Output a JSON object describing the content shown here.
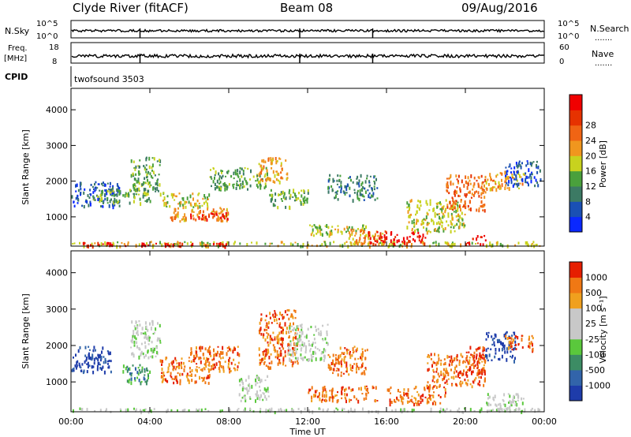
{
  "header": {
    "station": "Clyde River (fitACF)",
    "beam": "Beam 08",
    "date": "09/Aug/2016"
  },
  "top_panels": {
    "nsky_label": "N.Sky",
    "nsearch_label": "N.Search",
    "nsky_ticks": [
      "10^5",
      "10^0"
    ],
    "nsearch_ticks": [
      "10^5",
      "10^0"
    ],
    "freq_label_1": "Freq.",
    "freq_label_2": "[MHz]",
    "freq_ticks": [
      "18",
      "8"
    ],
    "nave_label": "Nave",
    "nave_ticks": [
      "60",
      "0"
    ],
    "cpid_label": "CPID",
    "cpid_value": "twofsound 3503",
    "dots": "......."
  },
  "chart_data": [
    {
      "type": "heatmap",
      "name": "power",
      "ylabel": "Slant Range [km]",
      "ylim": [
        180,
        4600
      ],
      "yticks": [
        1000,
        2000,
        3000,
        4000
      ],
      "xlim": [
        0,
        24
      ],
      "xticks": [
        0,
        4,
        8,
        12,
        16,
        20,
        24
      ],
      "colorbar": {
        "label": "Power [dB]",
        "tick_labels": [
          "4",
          "8",
          "12",
          "16",
          "20",
          "24",
          "28"
        ],
        "colors": [
          "#0a28ff",
          "#1a50b4",
          "#3c7a64",
          "#4aa03c",
          "#c8d21e",
          "#f0961e",
          "#f06414",
          "#e63200",
          "#f00000"
        ]
      },
      "regions": [
        {
          "t0": 0.0,
          "t1": 24.0,
          "r0": 200,
          "r1": 330,
          "level": 4
        },
        {
          "t0": 0.5,
          "t1": 8.0,
          "r0": 200,
          "r1": 300,
          "level": 8
        },
        {
          "t0": 0.0,
          "t1": 2.5,
          "r0": 1300,
          "r1": 2000,
          "level": 1
        },
        {
          "t0": 1.0,
          "t1": 4.0,
          "r0": 1400,
          "r1": 1800,
          "level": 3
        },
        {
          "t0": 3.0,
          "t1": 4.5,
          "r0": 1700,
          "r1": 2700,
          "level": 3
        },
        {
          "t0": 4.5,
          "t1": 7.0,
          "r0": 1300,
          "r1": 1700,
          "level": 4
        },
        {
          "t0": 5.0,
          "t1": 8.0,
          "r0": 900,
          "r1": 1300,
          "level": 5
        },
        {
          "t0": 6.0,
          "t1": 8.0,
          "r0": 950,
          "r1": 1150,
          "level": 8
        },
        {
          "t0": 7.0,
          "t1": 10.0,
          "r0": 1800,
          "r1": 2400,
          "level": 3
        },
        {
          "t0": 9.5,
          "t1": 11.0,
          "r0": 2000,
          "r1": 2700,
          "level": 5
        },
        {
          "t0": 10.0,
          "t1": 12.0,
          "r0": 1300,
          "r1": 1800,
          "level": 3
        },
        {
          "t0": 12.0,
          "t1": 15.0,
          "r0": 500,
          "r1": 800,
          "level": 4
        },
        {
          "t0": 13.0,
          "t1": 15.5,
          "r0": 1500,
          "r1": 2200,
          "level": 2
        },
        {
          "t0": 14.0,
          "t1": 16.0,
          "r0": 250,
          "r1": 700,
          "level": 5
        },
        {
          "t0": 15.0,
          "t1": 18.0,
          "r0": 250,
          "r1": 600,
          "level": 8
        },
        {
          "t0": 17.0,
          "t1": 20.0,
          "r0": 600,
          "r1": 1500,
          "level": 4
        },
        {
          "t0": 19.0,
          "t1": 21.0,
          "r0": 1200,
          "r1": 2200,
          "level": 6
        },
        {
          "t0": 20.0,
          "t1": 21.0,
          "r0": 250,
          "r1": 500,
          "level": 8
        },
        {
          "t0": 21.0,
          "t1": 23.0,
          "r0": 1800,
          "r1": 2300,
          "level": 5
        },
        {
          "t0": 22.0,
          "t1": 23.8,
          "r0": 1900,
          "r1": 2600,
          "level": 1
        }
      ]
    },
    {
      "type": "heatmap",
      "name": "velocity",
      "ylabel": "Slant Range [km]",
      "ylim": [
        180,
        4600
      ],
      "yticks": [
        1000,
        2000,
        3000,
        4000
      ],
      "xlim": [
        0,
        24
      ],
      "xticks": [
        0,
        4,
        8,
        12,
        16,
        20,
        24
      ],
      "xtick_labels": [
        "00:00",
        "04:00",
        "08:00",
        "12:00",
        "16:00",
        "20:00",
        "00:00"
      ],
      "xlabel": "Time UT",
      "colorbar": {
        "label": "Velocity [m s⁻¹]",
        "tick_labels": [
          "1000",
          "500",
          "100",
          "25",
          "-25",
          "-100",
          "-500",
          "-1000"
        ],
        "colors": [
          "#1e3caa",
          "#3264aa",
          "#3c8c64",
          "#5ac83c",
          "#c8c8c8",
          "#c8c8c8",
          "#f0a01e",
          "#f07814",
          "#e61e00"
        ]
      },
      "regions": [
        {
          "t0": 0.0,
          "t1": 24.0,
          "r0": 200,
          "r1": 300,
          "level": 4
        },
        {
          "t0": 0.0,
          "t1": 2.0,
          "r0": 1300,
          "r1": 2000,
          "level": 0
        },
        {
          "t0": 2.5,
          "t1": 4.0,
          "r0": 1000,
          "r1": 1500,
          "level": 2
        },
        {
          "t0": 3.0,
          "t1": 4.5,
          "r0": 1700,
          "r1": 2700,
          "level": 4
        },
        {
          "t0": 4.5,
          "t1": 7.0,
          "r0": 1000,
          "r1": 1700,
          "level": 7
        },
        {
          "t0": 6.0,
          "t1": 8.5,
          "r0": 1300,
          "r1": 2000,
          "level": 7
        },
        {
          "t0": 8.5,
          "t1": 10.0,
          "r0": 500,
          "r1": 1200,
          "level": 4
        },
        {
          "t0": 9.5,
          "t1": 11.5,
          "r0": 1400,
          "r1": 3000,
          "level": 7
        },
        {
          "t0": 11.0,
          "t1": 13.0,
          "r0": 1600,
          "r1": 2600,
          "level": 4
        },
        {
          "t0": 12.0,
          "t1": 15.5,
          "r0": 500,
          "r1": 900,
          "level": 7
        },
        {
          "t0": 13.0,
          "t1": 15.0,
          "r0": 1200,
          "r1": 2000,
          "level": 7
        },
        {
          "t0": 16.0,
          "t1": 19.0,
          "r0": 400,
          "r1": 900,
          "level": 7
        },
        {
          "t0": 18.0,
          "t1": 21.0,
          "r0": 900,
          "r1": 1800,
          "level": 7
        },
        {
          "t0": 20.0,
          "t1": 21.0,
          "r0": 1200,
          "r1": 2000,
          "level": 8
        },
        {
          "t0": 21.0,
          "t1": 22.5,
          "r0": 1600,
          "r1": 2400,
          "level": 0
        },
        {
          "t0": 22.0,
          "t1": 23.5,
          "r0": 1900,
          "r1": 2300,
          "level": 7
        },
        {
          "t0": 21.0,
          "t1": 23.0,
          "r0": 200,
          "r1": 700,
          "level": 4
        }
      ]
    }
  ]
}
